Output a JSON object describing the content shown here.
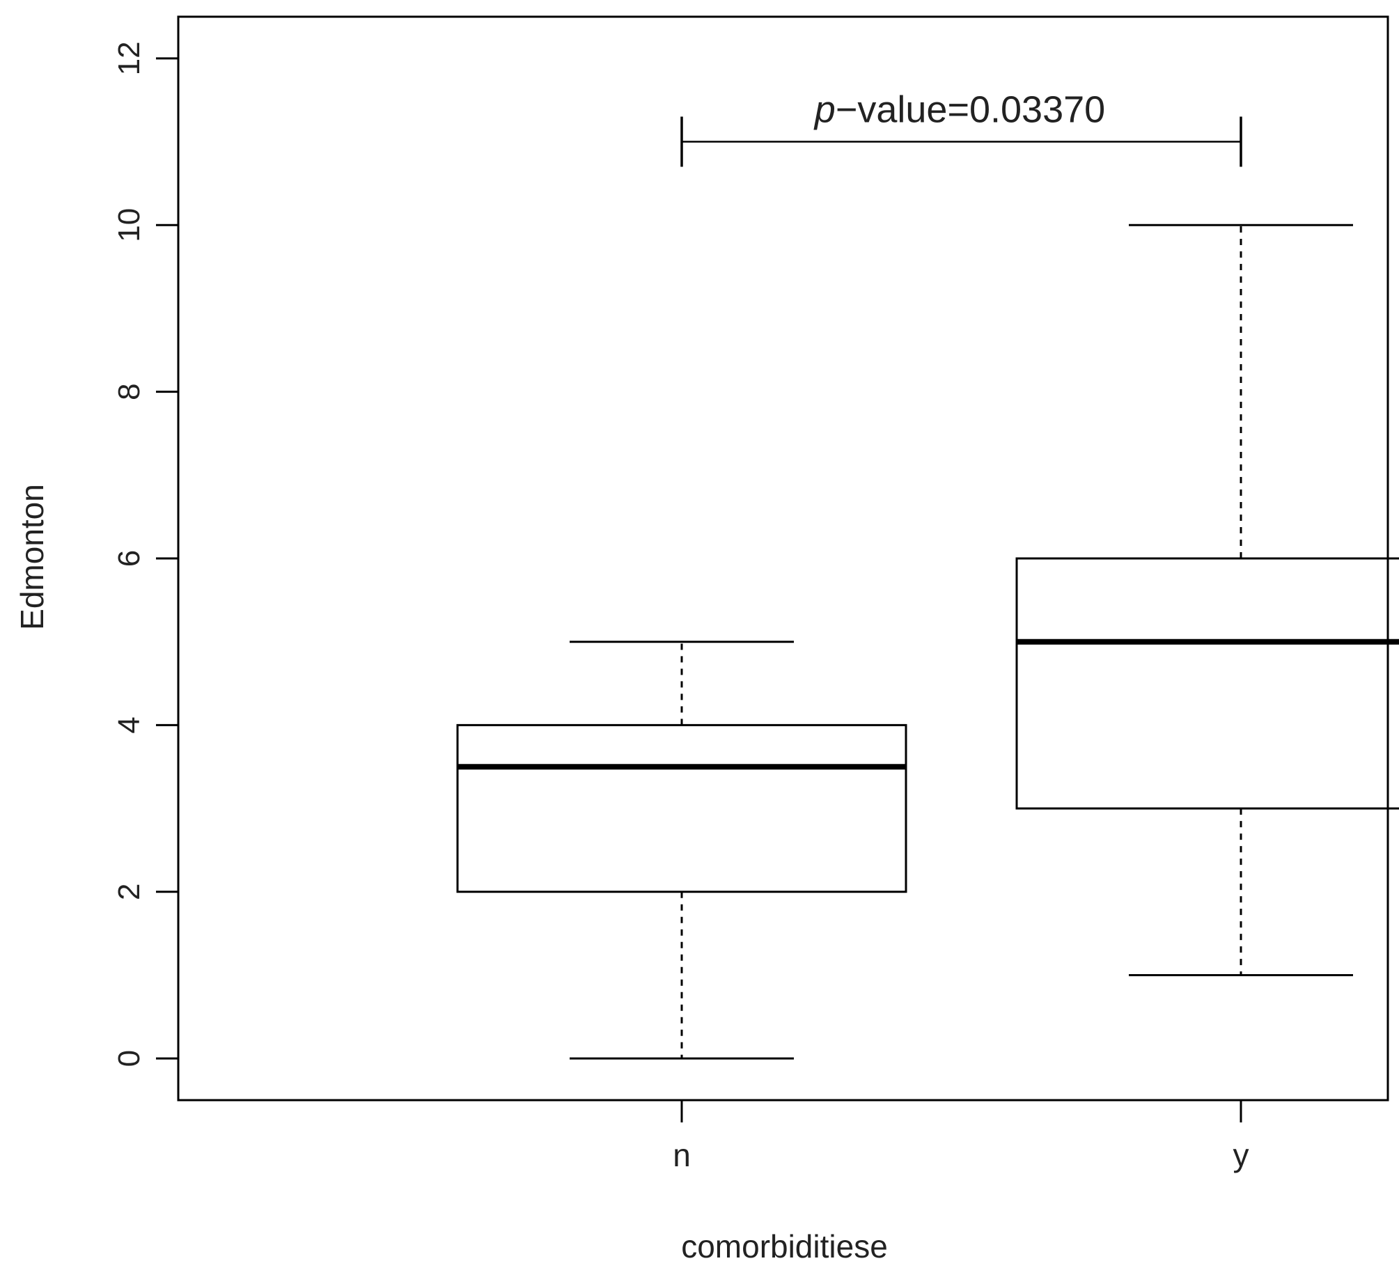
{
  "chart_data": {
    "type": "box",
    "categories": [
      "n",
      "y"
    ],
    "boxes": [
      {
        "category": "n",
        "min": 0,
        "q1": 2,
        "median": 3.5,
        "q3": 4,
        "max": 5
      },
      {
        "category": "y",
        "min": 1,
        "q1": 3,
        "median": 5,
        "q3": 6,
        "max": 10
      }
    ],
    "xlabel": "comorbiditiese",
    "ylabel": "Edmonton",
    "ylim": [
      -0.5,
      12.5
    ],
    "yticks": [
      0,
      2,
      4,
      6,
      8,
      10,
      12
    ],
    "grid": false,
    "annotation": {
      "p_symbol": "p",
      "text": "−value=0.03370",
      "from": "n",
      "to": "y",
      "y": 11
    },
    "colors": {
      "box_fill": "#ffffff",
      "stroke": "#000000"
    }
  }
}
